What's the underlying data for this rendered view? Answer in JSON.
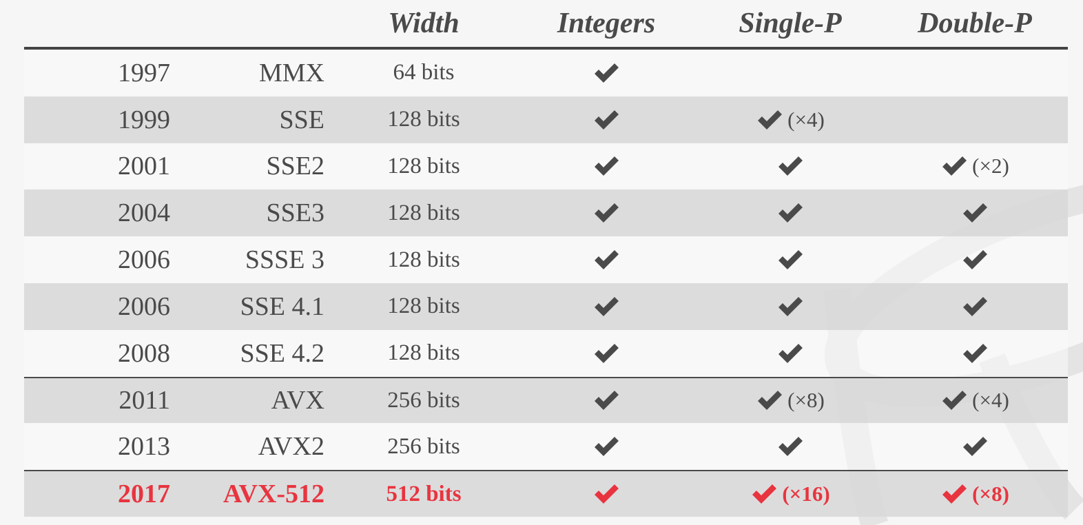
{
  "colors": {
    "text": "#4a4a4a",
    "highlight": "#e8343f",
    "shaded_row": "#d8d8d8",
    "rule": "#444444"
  },
  "header": {
    "col_width": "Width",
    "col_integers": "Integers",
    "col_single": "Single-P",
    "col_double": "Double-P"
  },
  "rows": [
    {
      "year": "1997",
      "name": "MMX",
      "width": "64 bits",
      "integers": true,
      "single": false,
      "single_mult": "",
      "double": false,
      "double_mult": ""
    },
    {
      "year": "1999",
      "name": "SSE",
      "width": "128 bits",
      "integers": true,
      "single": true,
      "single_mult": "(×4)",
      "double": false,
      "double_mult": ""
    },
    {
      "year": "2001",
      "name": "SSE2",
      "width": "128 bits",
      "integers": true,
      "single": true,
      "single_mult": "",
      "double": true,
      "double_mult": "(×2)"
    },
    {
      "year": "2004",
      "name": "SSE3",
      "width": "128 bits",
      "integers": true,
      "single": true,
      "single_mult": "",
      "double": true,
      "double_mult": ""
    },
    {
      "year": "2006",
      "name": "SSSE 3",
      "width": "128 bits",
      "integers": true,
      "single": true,
      "single_mult": "",
      "double": true,
      "double_mult": ""
    },
    {
      "year": "2006",
      "name": "SSE 4.1",
      "width": "128 bits",
      "integers": true,
      "single": true,
      "single_mult": "",
      "double": true,
      "double_mult": ""
    },
    {
      "year": "2008",
      "name": "SSE 4.2",
      "width": "128 bits",
      "integers": true,
      "single": true,
      "single_mult": "",
      "double": true,
      "double_mult": ""
    },
    {
      "year": "2011",
      "name": "AVX",
      "width": "256 bits",
      "integers": true,
      "single": true,
      "single_mult": "(×8)",
      "double": true,
      "double_mult": "(×4)"
    },
    {
      "year": "2013",
      "name": "AVX2",
      "width": "256 bits",
      "integers": true,
      "single": true,
      "single_mult": "",
      "double": true,
      "double_mult": ""
    },
    {
      "year": "2017",
      "name": "AVX-512",
      "width": "512 bits",
      "integers": true,
      "single": true,
      "single_mult": "(×16)",
      "double": true,
      "double_mult": "(×8)",
      "highlight": true
    }
  ]
}
